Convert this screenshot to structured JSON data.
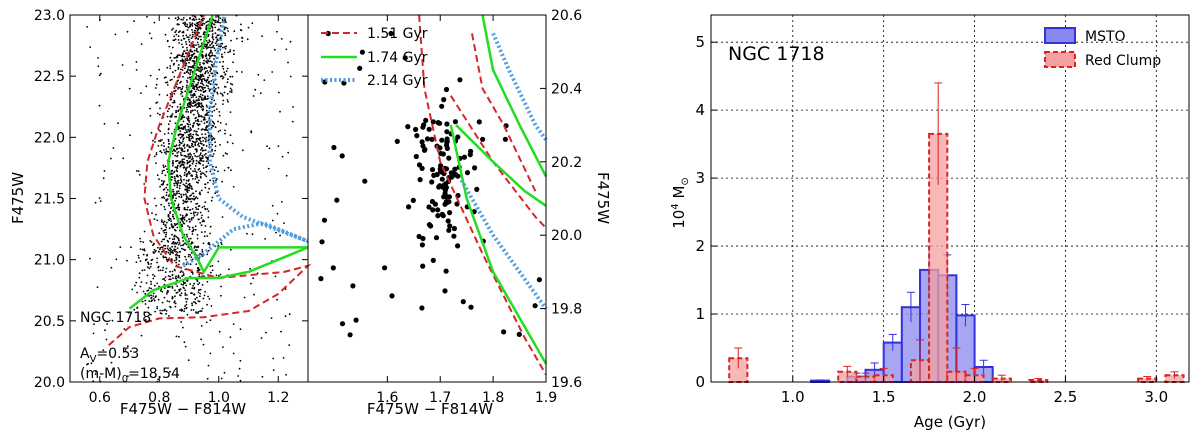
{
  "chart_data": [
    {
      "type": "scatter",
      "panel": "cmd-full",
      "xlabel": "F475W − F814W",
      "ylabel": "F475W",
      "xlim": [
        0.5,
        1.3
      ],
      "ylim": [
        23.0,
        20.0
      ],
      "xticks": [
        "0.6",
        "0.8",
        "1.0",
        "1.2"
      ],
      "yticks": [
        "20.0",
        "20.5",
        "21.0",
        "21.5",
        "22.0",
        "22.5",
        "23.0"
      ],
      "annotations": [
        "NGC 1718",
        "A",
        "V",
        "=0.53",
        "(m-M)",
        "0",
        "=18.54"
      ],
      "point_color": "#000000",
      "isochrone_colors": [
        "#d62728",
        "#22dd22",
        "#4d9de0"
      ]
    },
    {
      "type": "scatter",
      "panel": "cmd-red-clump",
      "xlabel": "F475W − F814W",
      "ylabel": "F475W",
      "ylabel_side": "right",
      "xlim": [
        1.45,
        1.9
      ],
      "ylim": [
        20.6,
        19.6
      ],
      "xticks": [
        "1.6",
        "1.7",
        "1.8",
        "1.9"
      ],
      "yticks": [
        "19.6",
        "19.8",
        "20.0",
        "20.2",
        "20.4",
        "20.6"
      ],
      "legend_position": "top-left",
      "series": [
        {
          "name": "1.51 Gyr",
          "style": "dashed",
          "color": "#d62728"
        },
        {
          "name": "1.74 Gyr",
          "style": "solid",
          "color": "#22dd22"
        },
        {
          "name": "2.14 Gyr",
          "style": "dotted",
          "color": "#4d9de0"
        }
      ],
      "point_color": "#000000"
    },
    {
      "type": "bar",
      "panel": "histogram",
      "title": "NGC 1718",
      "xlabel": "Age (Gyr)",
      "ylabel": "10",
      "ylabel_sup": "4",
      "ylabel_tail": " M",
      "ylabel_sub": "⊙",
      "xlim": [
        0.55,
        3.18
      ],
      "ylim": [
        0,
        5.4
      ],
      "xticks": [
        "1.0",
        "1.5",
        "2.0",
        "2.5",
        "3.0"
      ],
      "yticks": [
        "0",
        "1",
        "2",
        "3",
        "4",
        "5"
      ],
      "grid": true,
      "legend_position": "top-right",
      "series": [
        {
          "name": "MSTO",
          "color": "#3333dd",
          "fill": "#8888ee",
          "bins": [
            {
              "x": 1.15,
              "v": 0.02,
              "err": 0.01
            },
            {
              "x": 1.35,
              "v": 0.08,
              "err": 0.05
            },
            {
              "x": 1.45,
              "v": 0.18,
              "err": 0.1
            },
            {
              "x": 1.55,
              "v": 0.58,
              "err": 0.12
            },
            {
              "x": 1.65,
              "v": 1.1,
              "err": 0.22
            },
            {
              "x": 1.75,
              "v": 1.65,
              "err": 0.35
            },
            {
              "x": 1.85,
              "v": 1.57,
              "err": 0.3
            },
            {
              "x": 1.95,
              "v": 0.98,
              "err": 0.16
            },
            {
              "x": 2.05,
              "v": 0.22,
              "err": 0.1
            }
          ]
        },
        {
          "name": "Red Clump",
          "color": "#dd2222",
          "fill": "#f4a0a0",
          "bins": [
            {
              "x": 0.7,
              "v": 0.35,
              "err": 0.15
            },
            {
              "x": 1.3,
              "v": 0.15,
              "err": 0.08
            },
            {
              "x": 1.4,
              "v": 0.08,
              "err": 0.05
            },
            {
              "x": 1.5,
              "v": 0.1,
              "err": 0.1
            },
            {
              "x": 1.7,
              "v": 0.32,
              "err": 0.3
            },
            {
              "x": 1.8,
              "v": 3.65,
              "err": 0.75
            },
            {
              "x": 1.9,
              "v": 0.15,
              "err": 0.35
            },
            {
              "x": 2.0,
              "v": 0.1,
              "err": 0.1
            },
            {
              "x": 2.15,
              "v": 0.05,
              "err": 0.05
            },
            {
              "x": 2.35,
              "v": 0.03,
              "err": 0.02
            },
            {
              "x": 2.95,
              "v": 0.05,
              "err": 0.03
            },
            {
              "x": 3.1,
              "v": 0.1,
              "err": 0.05
            }
          ]
        }
      ]
    }
  ]
}
